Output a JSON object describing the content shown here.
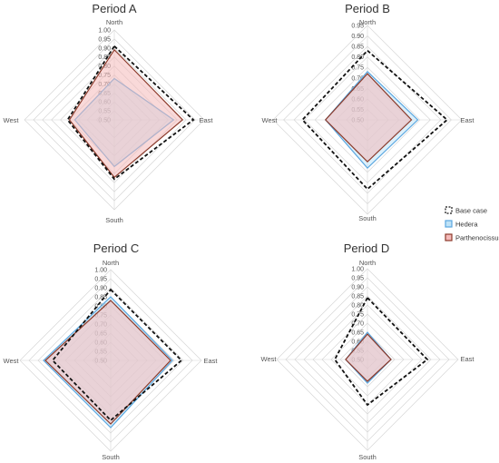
{
  "chart_data": [
    {
      "type": "radar",
      "title": "Period A",
      "axes": [
        "North",
        "East",
        "South",
        "West"
      ],
      "rlim": [
        0.5,
        1.0
      ],
      "ticks": [
        "0.50",
        "0.55",
        "0.60",
        "0.65",
        "0.70",
        "0.75",
        "0.80",
        "0.85",
        "0.90",
        "0.95",
        "1.00"
      ],
      "series": [
        {
          "name": "Base case",
          "values": [
            0.91,
            0.94,
            0.83,
            0.76
          ]
        },
        {
          "name": "Hedera",
          "values": [
            0.73,
            0.83,
            0.76,
            0.72
          ]
        },
        {
          "name": "Parthenocissus",
          "values": [
            0.89,
            0.88,
            0.82,
            0.75
          ]
        }
      ]
    },
    {
      "type": "radar",
      "title": "Period B",
      "axes": [
        "North",
        "East",
        "South",
        "West"
      ],
      "rlim": [
        0.5,
        0.95
      ],
      "ticks": [
        "0.50",
        "0.55",
        "0.60",
        "0.65",
        "0.70",
        "0.75",
        "0.80",
        "0.85",
        "0.90",
        "0.95"
      ],
      "series": [
        {
          "name": "Base case",
          "values": [
            0.83,
            0.88,
            0.83,
            0.81
          ]
        },
        {
          "name": "Hedera",
          "values": [
            0.73,
            0.74,
            0.73,
            0.7
          ]
        },
        {
          "name": "Parthenocissus",
          "values": [
            0.72,
            0.71,
            0.7,
            0.7
          ]
        }
      ]
    },
    {
      "type": "radar",
      "title": "Period C",
      "axes": [
        "North",
        "East",
        "South",
        "West"
      ],
      "rlim": [
        0.5,
        1.0
      ],
      "ticks": [
        "0.50",
        "0.55",
        "0.60",
        "0.65",
        "0.70",
        "0.75",
        "0.80",
        "0.85",
        "0.90",
        "0.95",
        "1.00"
      ],
      "series": [
        {
          "name": "Base case",
          "values": [
            0.89,
            0.89,
            0.83,
            0.82
          ]
        },
        {
          "name": "Hedera",
          "values": [
            0.85,
            0.84,
            0.87,
            0.87
          ]
        },
        {
          "name": "Parthenocissus",
          "values": [
            0.83,
            0.83,
            0.85,
            0.86
          ]
        }
      ]
    },
    {
      "type": "radar",
      "title": "Period D",
      "axes": [
        "North",
        "East",
        "South",
        "West"
      ],
      "rlim": [
        0.5,
        1.0
      ],
      "ticks": [
        "0.50",
        "0.55",
        "0.60",
        "0.65",
        "0.70",
        "0.75",
        "0.80",
        "0.85",
        "0.90",
        "0.95",
        "1.00"
      ],
      "series": [
        {
          "name": "Base case",
          "values": [
            0.84,
            0.83,
            0.75,
            0.68
          ]
        },
        {
          "name": "Hedera",
          "values": [
            0.65,
            0.63,
            0.63,
            0.62
          ]
        },
        {
          "name": "Parthenocissus",
          "values": [
            0.64,
            0.63,
            0.62,
            0.62
          ]
        }
      ]
    }
  ],
  "legend": {
    "placement": "right",
    "items": [
      {
        "label": "Base case"
      },
      {
        "label": "Hedera"
      },
      {
        "label": "Parthenocissus"
      }
    ]
  },
  "styles": {
    "Base case": {
      "stroke": "#111111",
      "fill": "none",
      "dash": true
    },
    "Hedera": {
      "stroke": "#5aa7e0",
      "fill": "#bfe3f7"
    },
    "Parthenocissus": {
      "stroke": "#8b3a2a",
      "fill": "#f4b9b9"
    },
    "grid_color": "#d6d6d6"
  }
}
